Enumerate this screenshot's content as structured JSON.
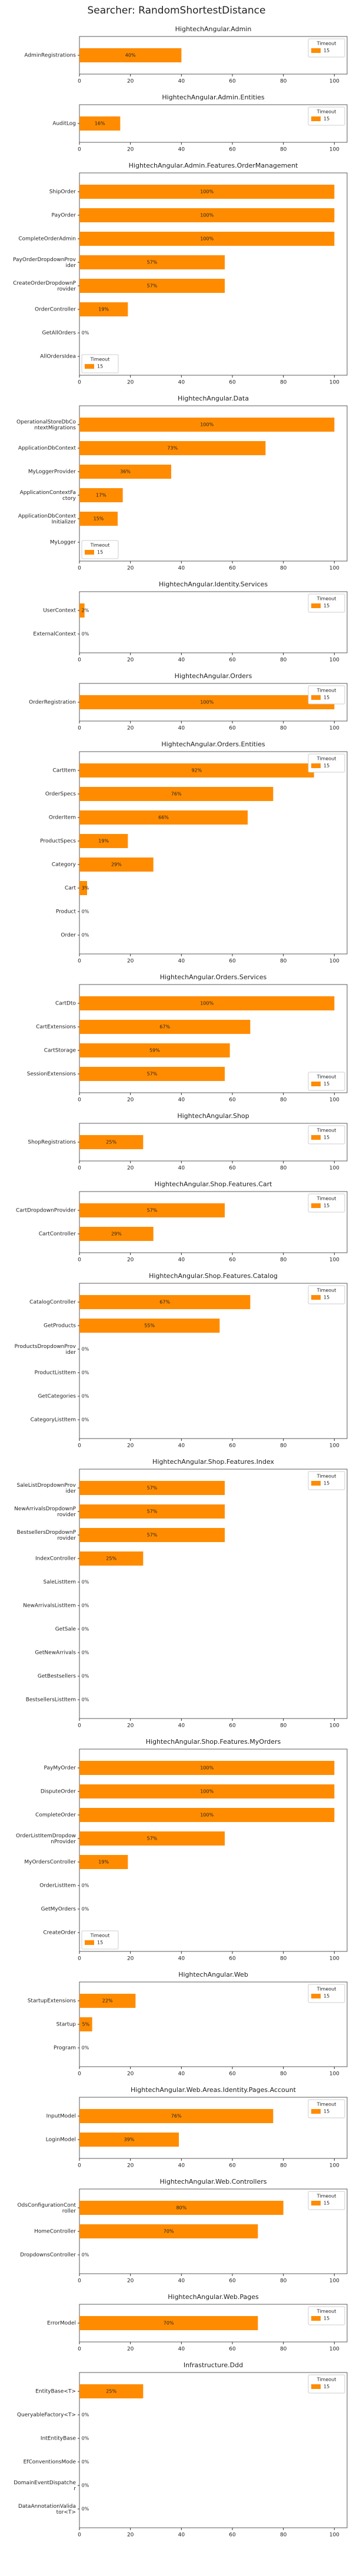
{
  "title": "Searcher: RandomShortestDistance",
  "chart_data": [
    {
      "type": "barh",
      "title": "HightechAngular.Admin",
      "categories": [
        "AdminRegistrations"
      ],
      "series": [
        {
          "name": "15",
          "color": "#ff8c00",
          "values": [
            40
          ],
          "value_labels": [
            "40%"
          ]
        }
      ],
      "legend_title": "Timeout",
      "legend": "upper right",
      "xlim": [
        0,
        105
      ],
      "xticks": [
        0,
        20,
        40,
        60,
        80,
        100
      ]
    },
    {
      "type": "barh",
      "title": "HightechAngular.Admin.Entities",
      "categories": [
        "AuditLog"
      ],
      "series": [
        {
          "name": "15",
          "color": "#ff8c00",
          "values": [
            16
          ],
          "value_labels": [
            "16%"
          ]
        }
      ],
      "legend_title": "Timeout",
      "legend": "upper right",
      "xlim": [
        0,
        105
      ],
      "xticks": [
        0,
        20,
        40,
        60,
        80,
        100
      ]
    },
    {
      "type": "barh",
      "title": "HightechAngular.Admin.Features.OrderManagement",
      "categories": [
        "ShipOrder",
        "PayOrder",
        "CompleteOrderAdmin",
        "PayOrderDropdownProvider",
        "CreateOrderDropdownProvider",
        "OrderController",
        "GetAllOrders",
        "AllOrdersIdea"
      ],
      "series": [
        {
          "name": "15",
          "color": "#ff8c00",
          "values": [
            100,
            100,
            100,
            57,
            57,
            19,
            0,
            0
          ],
          "value_labels": [
            "100%",
            "100%",
            "100%",
            "57%",
            "57%",
            "19%",
            "0%",
            "0%"
          ]
        }
      ],
      "legend_title": "Timeout",
      "legend": "lower left",
      "xlim": [
        0,
        105
      ],
      "xticks": [
        0,
        20,
        40,
        60,
        80,
        100
      ]
    },
    {
      "type": "barh",
      "title": "HightechAngular.Data",
      "categories": [
        "OperationalStoreDbContextMigrations",
        "ApplicationDbContext",
        "MyLoggerProvider",
        "ApplicationContextFactory",
        "ApplicationDbContextInitializer",
        "MyLogger"
      ],
      "series": [
        {
          "name": "15",
          "color": "#ff8c00",
          "values": [
            100,
            73,
            36,
            17,
            15,
            0
          ],
          "value_labels": [
            "100%",
            "73%",
            "36%",
            "17%",
            "15%",
            "0%"
          ]
        }
      ],
      "legend_title": "Timeout",
      "legend": "lower left",
      "xlim": [
        0,
        105
      ],
      "xticks": [
        0,
        20,
        40,
        60,
        80,
        100
      ]
    },
    {
      "type": "barh",
      "title": "HightechAngular.Identity.Services",
      "categories": [
        "UserContext",
        "ExternalContext"
      ],
      "series": [
        {
          "name": "15",
          "color": "#ff8c00",
          "values": [
            2,
            0
          ],
          "value_labels": [
            "2%",
            "0%"
          ]
        }
      ],
      "legend_title": "Timeout",
      "legend": "upper right",
      "xlim": [
        0,
        105
      ],
      "xticks": [
        0,
        20,
        40,
        60,
        80,
        100
      ]
    },
    {
      "type": "barh",
      "title": "HightechAngular.Orders",
      "categories": [
        "OrderRegistration"
      ],
      "series": [
        {
          "name": "15",
          "color": "#ff8c00",
          "values": [
            100
          ],
          "value_labels": [
            "100%"
          ]
        }
      ],
      "legend_title": "Timeout",
      "legend": "upper right",
      "xlim": [
        0,
        105
      ],
      "xticks": [
        0,
        20,
        40,
        60,
        80,
        100
      ]
    },
    {
      "type": "barh",
      "title": "HightechAngular.Orders.Entities",
      "categories": [
        "CartItem",
        "OrderSpecs",
        "OrderItem",
        "ProductSpecs",
        "Category",
        "Cart",
        "Product",
        "Order"
      ],
      "series": [
        {
          "name": "15",
          "color": "#ff8c00",
          "values": [
            92,
            76,
            66,
            19,
            29,
            3,
            0,
            0
          ],
          "value_labels": [
            "92%",
            "76%",
            "66%",
            "19%",
            "29%",
            "3%",
            "0%",
            "0%"
          ]
        }
      ],
      "legend_title": "Timeout",
      "legend": "upper right",
      "xlim": [
        0,
        105
      ],
      "xticks": [
        0,
        20,
        40,
        60,
        80,
        100
      ]
    },
    {
      "type": "barh",
      "title": "HightechAngular.Orders.Services",
      "categories": [
        "CartDto",
        "CartExtensions",
        "CartStorage",
        "SessionExtensions"
      ],
      "series": [
        {
          "name": "15",
          "color": "#ff8c00",
          "values": [
            100,
            67,
            59,
            57
          ],
          "value_labels": [
            "100%",
            "67%",
            "59%",
            "57%"
          ]
        }
      ],
      "legend_title": "Timeout",
      "legend": "lower right",
      "xlim": [
        0,
        105
      ],
      "xticks": [
        0,
        20,
        40,
        60,
        80,
        100
      ]
    },
    {
      "type": "barh",
      "title": "HightechAngular.Shop",
      "categories": [
        "ShopRegistrations"
      ],
      "series": [
        {
          "name": "15",
          "color": "#ff8c00",
          "values": [
            25
          ],
          "value_labels": [
            "25%"
          ]
        }
      ],
      "legend_title": "Timeout",
      "legend": "upper right",
      "xlim": [
        0,
        105
      ],
      "xticks": [
        0,
        20,
        40,
        60,
        80,
        100
      ]
    },
    {
      "type": "barh",
      "title": "HightechAngular.Shop.Features.Cart",
      "categories": [
        "CartDropdownProvider",
        "CartController"
      ],
      "series": [
        {
          "name": "15",
          "color": "#ff8c00",
          "values": [
            57,
            29
          ],
          "value_labels": [
            "57%",
            "29%"
          ]
        }
      ],
      "legend_title": "Timeout",
      "legend": "upper right",
      "xlim": [
        0,
        105
      ],
      "xticks": [
        0,
        20,
        40,
        60,
        80,
        100
      ]
    },
    {
      "type": "barh",
      "title": "HightechAngular.Shop.Features.Catalog",
      "categories": [
        "CatalogController",
        "GetProducts",
        "ProductsDropdownProvider",
        "ProductListItem",
        "GetCategories",
        "CategoryListItem"
      ],
      "series": [
        {
          "name": "15",
          "color": "#ff8c00",
          "values": [
            67,
            55,
            0,
            0,
            0,
            0
          ],
          "value_labels": [
            "67%",
            "55%",
            "0%",
            "0%",
            "0%",
            "0%"
          ]
        }
      ],
      "legend_title": "Timeout",
      "legend": "upper right",
      "xlim": [
        0,
        105
      ],
      "xticks": [
        0,
        20,
        40,
        60,
        80,
        100
      ]
    },
    {
      "type": "barh",
      "title": "HightechAngular.Shop.Features.Index",
      "categories": [
        "SaleListDropdownProvider",
        "NewArrivalsDropdownProvider",
        "BestsellersDropdownProvider",
        "IndexController",
        "SaleListItem",
        "NewArrivalsListItem",
        "GetSale",
        "GetNewArrivals",
        "GetBestsellers",
        "BestsellersListItem"
      ],
      "series": [
        {
          "name": "15",
          "color": "#ff8c00",
          "values": [
            57,
            57,
            57,
            25,
            0,
            0,
            0,
            0,
            0,
            0
          ],
          "value_labels": [
            "57%",
            "57%",
            "57%",
            "25%",
            "0%",
            "0%",
            "0%",
            "0%",
            "0%",
            "0%"
          ]
        }
      ],
      "legend_title": "Timeout",
      "legend": "upper right",
      "xlim": [
        0,
        105
      ],
      "xticks": [
        0,
        20,
        40,
        60,
        80,
        100
      ]
    },
    {
      "type": "barh",
      "title": "HightechAngular.Shop.Features.MyOrders",
      "categories": [
        "PayMyOrder",
        "DisputeOrder",
        "CompleteOrder",
        "OrderListItemDropdownProvider",
        "MyOrdersController",
        "OrderListItem",
        "GetMyOrders",
        "CreateOrder"
      ],
      "series": [
        {
          "name": "15",
          "color": "#ff8c00",
          "values": [
            100,
            100,
            100,
            57,
            19,
            0,
            0,
            0
          ],
          "value_labels": [
            "100%",
            "100%",
            "100%",
            "57%",
            "19%",
            "0%",
            "0%",
            "0%"
          ]
        }
      ],
      "legend_title": "Timeout",
      "legend": "lower left",
      "xlim": [
        0,
        105
      ],
      "xticks": [
        0,
        20,
        40,
        60,
        80,
        100
      ]
    },
    {
      "type": "barh",
      "title": "HightechAngular.Web",
      "categories": [
        "StartupExtensions",
        "Startup",
        "Program"
      ],
      "series": [
        {
          "name": "15",
          "color": "#ff8c00",
          "values": [
            22,
            5,
            0
          ],
          "value_labels": [
            "22%",
            "5%",
            "0%"
          ]
        }
      ],
      "legend_title": "Timeout",
      "legend": "upper right",
      "xlim": [
        0,
        105
      ],
      "xticks": [
        0,
        20,
        40,
        60,
        80,
        100
      ]
    },
    {
      "type": "barh",
      "title": "HightechAngular.Web.Areas.Identity.Pages.Account",
      "categories": [
        "InputModel",
        "LoginModel"
      ],
      "series": [
        {
          "name": "15",
          "color": "#ff8c00",
          "values": [
            76,
            39
          ],
          "value_labels": [
            "76%",
            "39%"
          ]
        }
      ],
      "legend_title": "Timeout",
      "legend": "upper right",
      "xlim": [
        0,
        105
      ],
      "xticks": [
        0,
        20,
        40,
        60,
        80,
        100
      ]
    },
    {
      "type": "barh",
      "title": "HightechAngular.Web.Controllers",
      "categories": [
        "OdsConfigurationController",
        "HomeController",
        "DropdownsController"
      ],
      "series": [
        {
          "name": "15",
          "color": "#ff8c00",
          "values": [
            80,
            70,
            0
          ],
          "value_labels": [
            "80%",
            "70%",
            "0%"
          ]
        }
      ],
      "legend_title": "Timeout",
      "legend": "upper right",
      "xlim": [
        0,
        105
      ],
      "xticks": [
        0,
        20,
        40,
        60,
        80,
        100
      ]
    },
    {
      "type": "barh",
      "title": "HightechAngular.Web.Pages",
      "categories": [
        "ErrorModel"
      ],
      "series": [
        {
          "name": "15",
          "color": "#ff8c00",
          "values": [
            70
          ],
          "value_labels": [
            "70%"
          ]
        }
      ],
      "legend_title": "Timeout",
      "legend": "upper right",
      "xlim": [
        0,
        105
      ],
      "xticks": [
        0,
        20,
        40,
        60,
        80,
        100
      ]
    },
    {
      "type": "barh",
      "title": "Infrastructure.Ddd",
      "categories": [
        "EntityBase<T>",
        "QueryableFactory<T>",
        "IntEntityBase",
        "EfConventionsMode",
        "DomainEventDispatcher",
        "DataAnnotationValidator<T>"
      ],
      "series": [
        {
          "name": "15",
          "color": "#ff8c00",
          "values": [
            25,
            0,
            0,
            0,
            0,
            0
          ],
          "value_labels": [
            "25%",
            "0%",
            "0%",
            "0%",
            "0%",
            "0%"
          ]
        }
      ],
      "legend_title": "Timeout",
      "legend": "upper right",
      "xlim": [
        0,
        105
      ],
      "xticks": [
        0,
        20,
        40,
        60,
        80,
        100
      ]
    }
  ]
}
